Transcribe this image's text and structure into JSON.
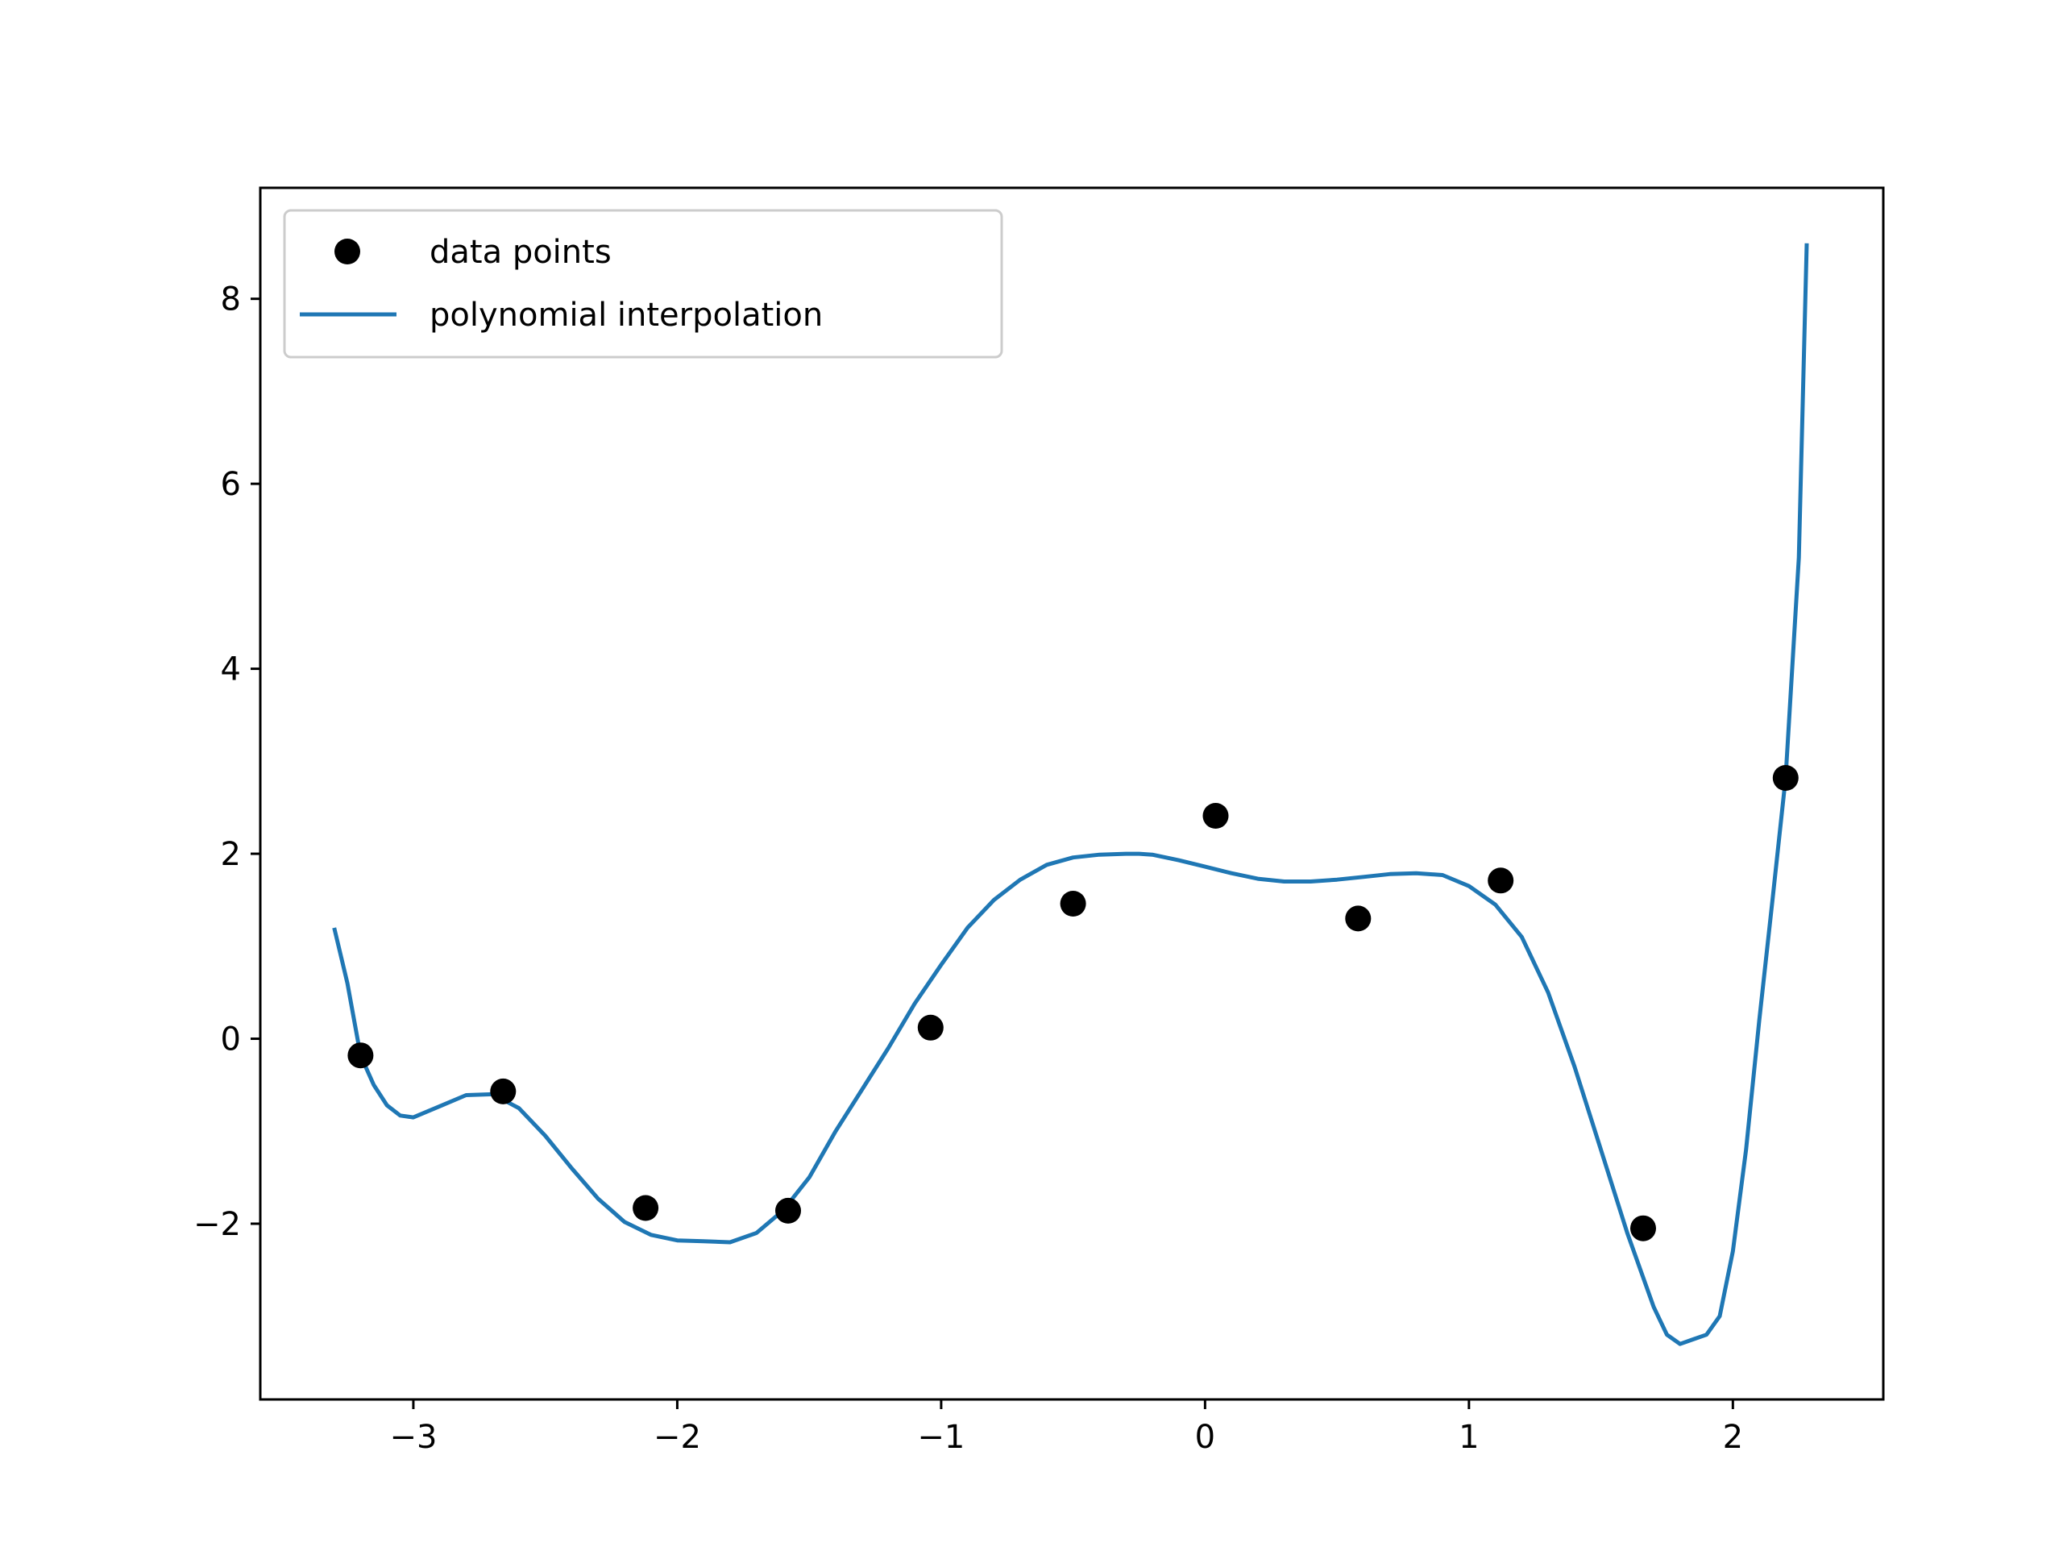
{
  "chart_data": {
    "type": "scatter",
    "title": "",
    "xlabel": "",
    "ylabel": "",
    "xlim": [
      -3.58,
      2.57
    ],
    "ylim": [
      -3.9,
      9.2
    ],
    "x_ticks": [
      {
        "value": -3,
        "label": "−3"
      },
      {
        "value": -2,
        "label": "−2"
      },
      {
        "value": -1,
        "label": "−1"
      },
      {
        "value": 0,
        "label": "0"
      },
      {
        "value": 1,
        "label": "1"
      },
      {
        "value": 2,
        "label": "2"
      }
    ],
    "y_ticks": [
      {
        "value": -2,
        "label": "−2"
      },
      {
        "value": 0,
        "label": "0"
      },
      {
        "value": 2,
        "label": "2"
      },
      {
        "value": 4,
        "label": "4"
      },
      {
        "value": 6,
        "label": "6"
      },
      {
        "value": 8,
        "label": "8"
      }
    ],
    "grid": false,
    "legend_position": "top-left",
    "series": [
      {
        "name": "data points",
        "kind": "scatter",
        "color": "#000000",
        "x": [
          -3.2,
          -2.66,
          -2.12,
          -1.58,
          -1.04,
          -0.5,
          0.04,
          0.58,
          1.12,
          1.66,
          2.2
        ],
        "y": [
          -0.18,
          -0.57,
          -1.83,
          -1.86,
          0.12,
          1.46,
          2.41,
          1.3,
          1.71,
          -2.05,
          2.82
        ]
      },
      {
        "name": "polynomial interpolation",
        "kind": "line",
        "color": "#1f77b4",
        "x": [
          -3.3,
          -3.25,
          -3.2,
          -3.15,
          -3.1,
          -3.05,
          -3.0,
          -2.9,
          -2.8,
          -2.7,
          -2.6,
          -2.5,
          -2.4,
          -2.3,
          -2.2,
          -2.1,
          -2.0,
          -1.9,
          -1.8,
          -1.7,
          -1.6,
          -1.5,
          -1.4,
          -1.3,
          -1.2,
          -1.1,
          -1.0,
          -0.9,
          -0.8,
          -0.7,
          -0.6,
          -0.5,
          -0.4,
          -0.3,
          -0.25,
          -0.2,
          -0.1,
          0.0,
          0.1,
          0.2,
          0.3,
          0.4,
          0.5,
          0.6,
          0.7,
          0.8,
          0.9,
          1.0,
          1.1,
          1.2,
          1.3,
          1.4,
          1.5,
          1.6,
          1.7,
          1.75,
          1.8,
          1.85,
          1.9,
          1.95,
          2.0,
          2.05,
          2.1,
          2.15,
          2.2,
          2.25,
          2.28
        ],
        "y": [
          1.2,
          0.6,
          -0.18,
          -0.5,
          -0.72,
          -0.83,
          -0.85,
          -0.73,
          -0.61,
          -0.6,
          -0.75,
          -1.05,
          -1.4,
          -1.73,
          -1.98,
          -2.12,
          -2.18,
          -2.19,
          -2.2,
          -2.1,
          -1.86,
          -1.5,
          -1.0,
          -0.55,
          -0.1,
          0.38,
          0.8,
          1.2,
          1.5,
          1.72,
          1.88,
          1.96,
          1.99,
          2.0,
          2.0,
          1.99,
          1.93,
          1.86,
          1.79,
          1.73,
          1.7,
          1.7,
          1.72,
          1.75,
          1.78,
          1.79,
          1.77,
          1.65,
          1.45,
          1.1,
          0.5,
          -0.3,
          -1.2,
          -2.1,
          -2.9,
          -3.2,
          -3.3,
          -3.25,
          -3.2,
          -3.0,
          -2.3,
          -1.2,
          0.2,
          1.5,
          2.82,
          5.2,
          8.6
        ]
      }
    ]
  }
}
